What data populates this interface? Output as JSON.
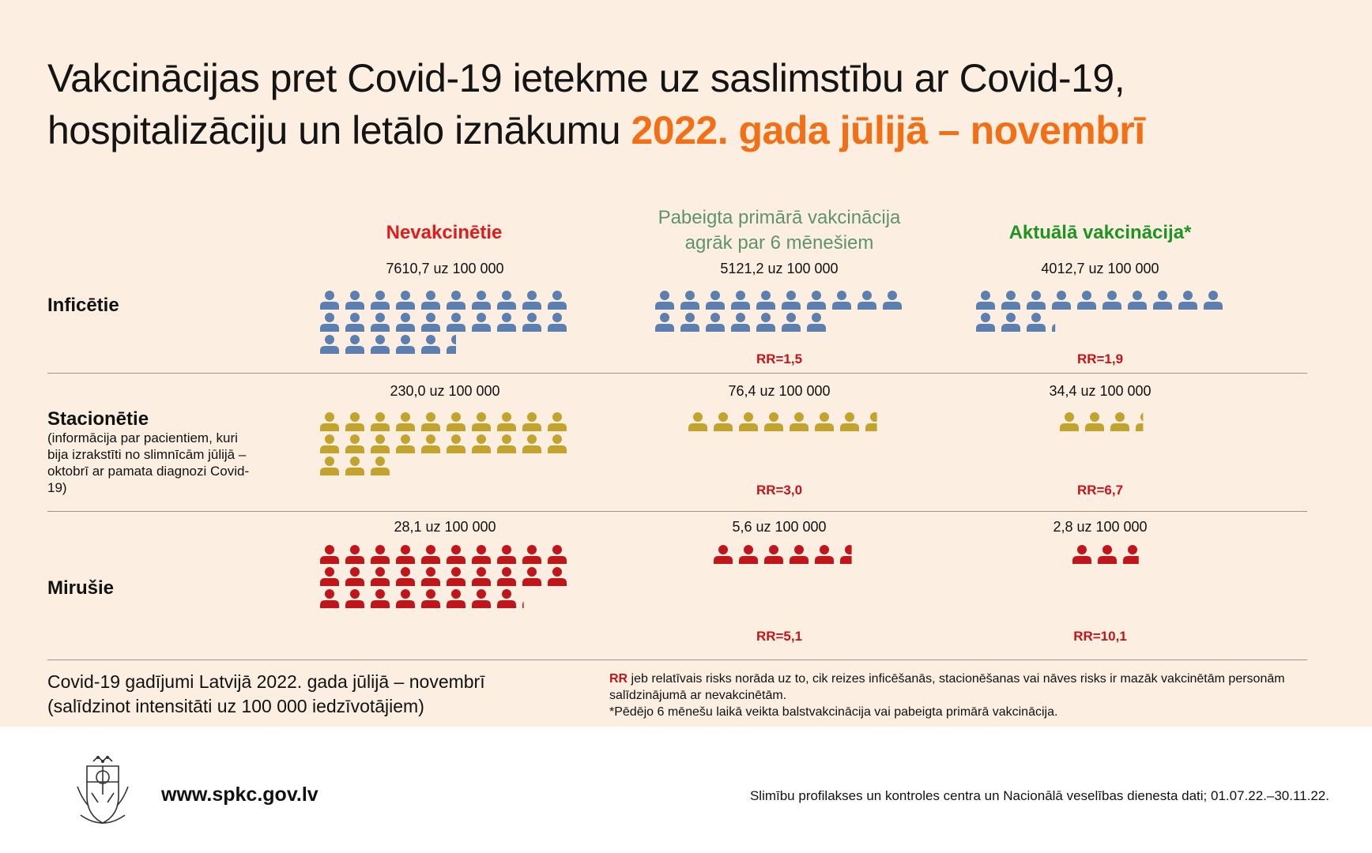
{
  "title": {
    "line1": "Vakcinācijas pret Covid-19 ietekme uz saslimstību ar Covid-19,",
    "line2_prefix": "hospitalizāciju un letālo iznākumu ",
    "line2_highlight": "2022. gada jūlijā – novembrī"
  },
  "columns": [
    {
      "line1": "Nevakcinētie",
      "line2": "",
      "color": "#e01b1b",
      "bold": true
    },
    {
      "line1": "Pabeigta primārā vakcinācija",
      "line2": "agrāk par 6 mēnešiem",
      "color": "#5e9270",
      "bold": false
    },
    {
      "line1": "Aktuālā vakcinācija*",
      "line2": "",
      "color": "#1e9421",
      "bold": true
    }
  ],
  "rows": {
    "infected": {
      "label": "Inficētie"
    },
    "hospital": {
      "label": "Stacionētie",
      "note": "(informācija par pacientiem, kuri bija izrakstīti no slimnīcām jūlijā – oktobrī ar pamata diagnozi Covid-19)"
    },
    "deaths": {
      "label": "Mirušie"
    }
  },
  "chart_data": {
    "type": "pictogram",
    "unit": "uz 100 000",
    "categories": [
      "Nevakcinētie",
      "Pabeigta primārā vakcinācija agrāk par 6 mēnešiem",
      "Aktuālā vakcinācija*"
    ],
    "series": [
      {
        "name": "Inficētie",
        "color": "#5b7fae",
        "values": [
          7610.7,
          5121.2,
          4012.7
        ],
        "value_labels": [
          "7610,7 uz 100 000",
          "5121,2 uz 100 000",
          "4012,7 uz 100 000"
        ],
        "icons_shown": [
          25.5,
          17.0,
          13.2
        ],
        "rr": [
          "",
          "RR=1,5",
          "RR=1,9"
        ]
      },
      {
        "name": "Stacionētie",
        "color": "#c2a32e",
        "values": [
          230.0,
          76.4,
          34.4
        ],
        "value_labels": [
          "230,0 uz 100 000",
          "76,4 uz 100 000",
          "34,4 uz 100 000"
        ],
        "icons_shown": [
          23,
          7.6,
          3.4
        ],
        "rr": [
          "",
          "RR=3,0",
          "RR=6,7"
        ]
      },
      {
        "name": "Mirušie",
        "color": "#c0151a",
        "values": [
          28.1,
          5.6,
          2.8
        ],
        "value_labels": [
          "28,1 uz 100 000",
          "5,6 uz 100 000",
          "2,8 uz 100 000"
        ],
        "icons_shown": [
          28.1,
          5.6,
          2.8
        ],
        "rr": [
          "",
          "RR=5,1",
          "RR=10,1"
        ]
      }
    ]
  },
  "footer": {
    "left_line1": "Covid-19 gadījumi Latvijā 2022. gada jūlijā – novembrī",
    "left_line2": "(salīdzinot intensitāti uz 100 000 iedzīvotājiem)",
    "rr_abbr": "RR",
    "rr_text": " jeb relatīvais risks norāda uz to, cik reizes inficēšanās, stacionēšanas vai nāves risks ir mazāk vakcinētām personām salīdzinājumā ar nevakcinētām.",
    "asterisk_note": "*Pēdējo 6 mēnešu laikā veikta balstvakcinācija vai pabeigta primārā vakcinācija."
  },
  "bottom": {
    "url": "www.spkc.gov.lv",
    "source": "Slimību profilakses un kontroles centra un Nacionālā veselības dienesta dati; 01.07.22.–30.11.22."
  }
}
